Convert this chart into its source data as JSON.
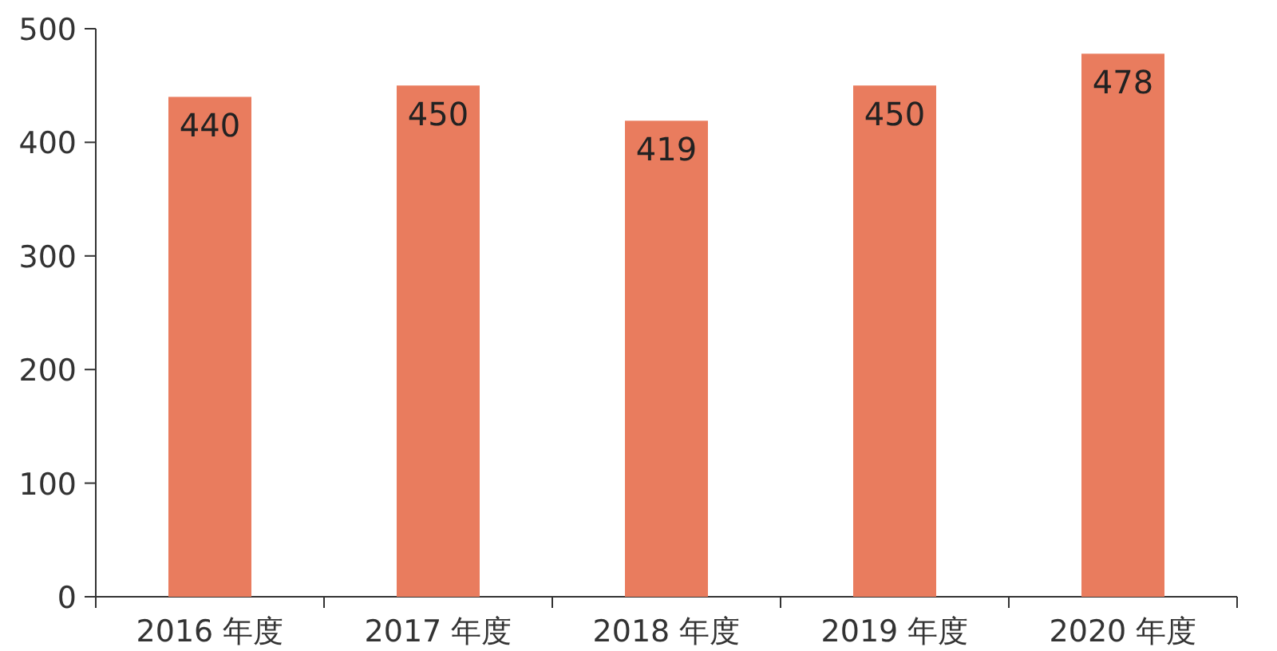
{
  "chart_data": {
    "type": "bar",
    "categories": [
      "2016 年度",
      "2017 年度",
      "2018 年度",
      "2019 年度",
      "2020 年度"
    ],
    "values": [
      440,
      450,
      419,
      450,
      478
    ],
    "color": "#e97c5e",
    "ylim": [
      0,
      500
    ],
    "yticks": [
      0,
      100,
      200,
      300,
      400,
      500
    ],
    "data_labels": true
  }
}
